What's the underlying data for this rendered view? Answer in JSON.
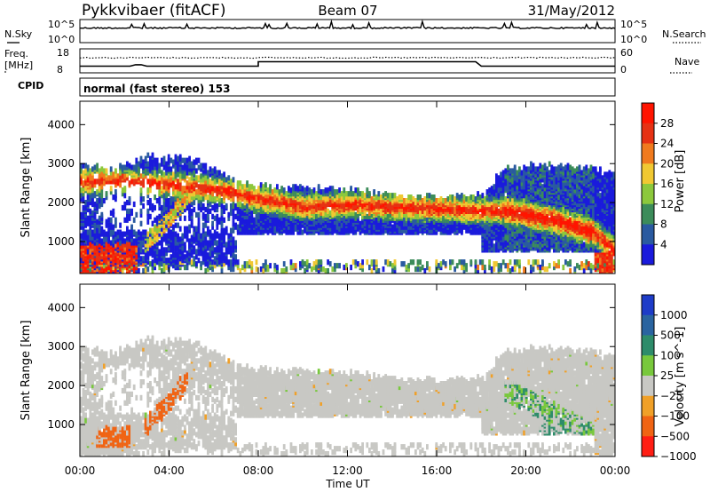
{
  "header": {
    "station": "Pykkvibaer (fitACF)",
    "beam": "Beam 07",
    "date": "31/May/2012"
  },
  "top_panels": {
    "nsky_label": "N.Sky",
    "nsky_tick_top": "10^5",
    "nsky_tick_bottom": "10^0",
    "nsearch_label": "N.Search",
    "nsearch_tick_top": "10^5",
    "nsearch_tick_bottom": "10^0",
    "freq_label_line1": "Freq.",
    "freq_label_line2": "[MHz]",
    "freq_tick_top": "18",
    "freq_tick_bottom": "8",
    "nave_label": "Nave",
    "nave_tick_top": "60",
    "nave_tick_bottom": "0",
    "cpid_label": "CPID",
    "cpid_text": "normal (fast stereo) 153"
  },
  "chart_data": [
    {
      "type": "heatmap",
      "name": "Power",
      "ylabel": "Slant Range [km]",
      "yticks": [
        "1000",
        "2000",
        "3000",
        "4000"
      ],
      "ylim": [
        180,
        4600
      ],
      "colorbar_label": "Power [dB]",
      "colorbar_ticks": [
        "4",
        "8",
        "12",
        "16",
        "20",
        "24",
        "28"
      ],
      "colors": [
        "#1a1adc",
        "#2a5aa0",
        "#3c8c5a",
        "#8cc83c",
        "#f0c832",
        "#f07a1e",
        "#e63214",
        "#ff1400"
      ]
    },
    {
      "type": "heatmap",
      "name": "Velocity",
      "ylabel": "Slant Range [km]",
      "yticks": [
        "1000",
        "2000",
        "3000",
        "4000"
      ],
      "ylim": [
        180,
        4600
      ],
      "colorbar_label": "Velocity [m s^-1]",
      "colorbar_ticks": [
        "1000",
        "500",
        "100",
        "25",
        "−25",
        "−100",
        "−500",
        "−1000"
      ],
      "colors": [
        "#1e3cc8",
        "#2a64a0",
        "#2e8c6a",
        "#78c83c",
        "#c8c8c4",
        "#f0a028",
        "#f06414",
        "#ff1e14"
      ]
    }
  ],
  "xaxis": {
    "ticks": [
      "00:00",
      "04:00",
      "08:00",
      "12:00",
      "16:00",
      "20:00",
      "00:00"
    ],
    "label": "Time UT"
  }
}
